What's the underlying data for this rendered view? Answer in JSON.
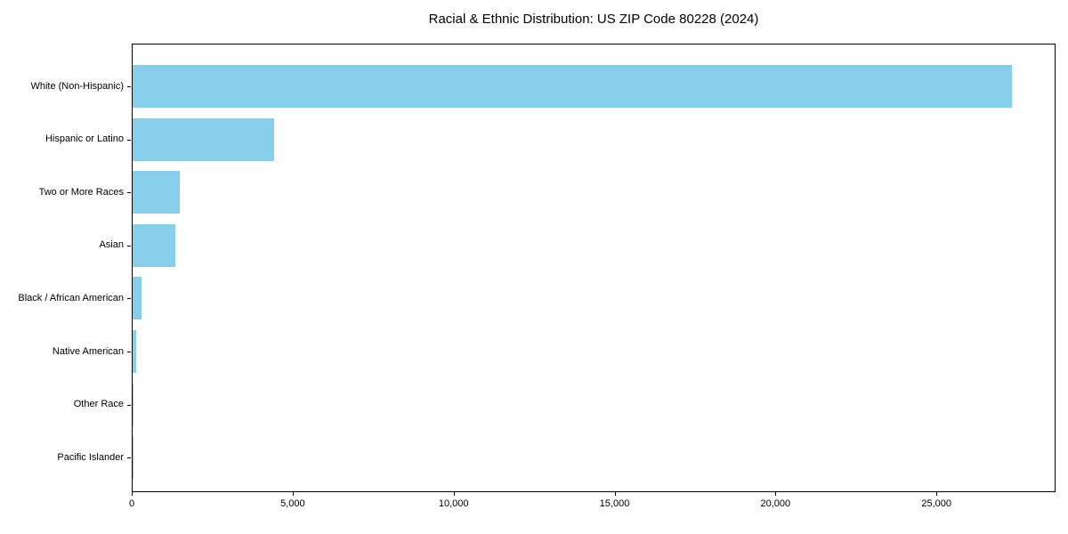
{
  "chart_data": {
    "type": "bar",
    "orientation": "horizontal",
    "title": "Racial & Ethnic Distribution: US ZIP Code 80228 (2024)",
    "categories": [
      "White (Non-Hispanic)",
      "Hispanic or Latino",
      "Two or More Races",
      "Asian",
      "Black / African American",
      "Native American",
      "Other Race",
      "Pacific Islander"
    ],
    "values": [
      27325,
      4400,
      1460,
      1340,
      285,
      100,
      30,
      8
    ],
    "xlabel": "",
    "ylabel": "",
    "xlim": [
      0,
      28700
    ],
    "xticks": [
      0,
      5000,
      10000,
      15000,
      20000,
      25000
    ],
    "bar_color": "#87CEEB",
    "axis_color": "#000000",
    "background_color": "#ffffff",
    "grid": false,
    "legend": null
  }
}
